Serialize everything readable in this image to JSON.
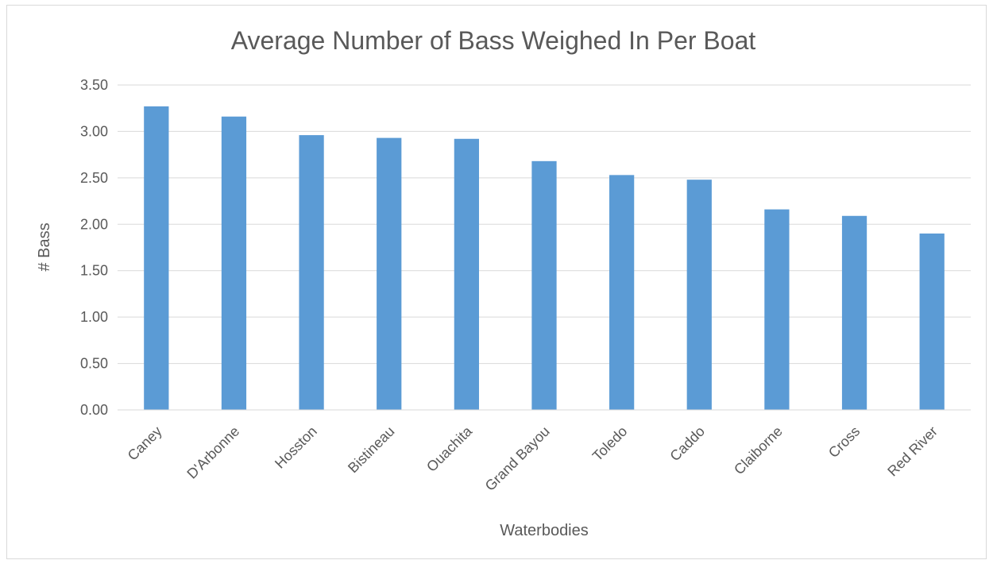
{
  "chart_data": {
    "type": "bar",
    "title": "Average Number of Bass Weighed In Per Boat",
    "xlabel": "Waterbodies",
    "ylabel": "# Bass",
    "categories": [
      "Caney",
      "D'Arbonne",
      "Hosston",
      "Bistineau",
      "Ouachita",
      "Grand Bayou",
      "Toledo",
      "Caddo",
      "Claiborne",
      "Cross",
      "Red River"
    ],
    "values": [
      3.27,
      3.16,
      2.96,
      2.93,
      2.92,
      2.68,
      2.53,
      2.48,
      2.16,
      2.09,
      1.9
    ],
    "ylim": [
      0,
      3.5
    ],
    "yticks": [
      "0.00",
      "0.50",
      "1.00",
      "1.50",
      "2.00",
      "2.50",
      "3.00",
      "3.50"
    ],
    "grid": true,
    "bar_color": "#5b9bd5",
    "grid_color": "#d9d9d9"
  }
}
